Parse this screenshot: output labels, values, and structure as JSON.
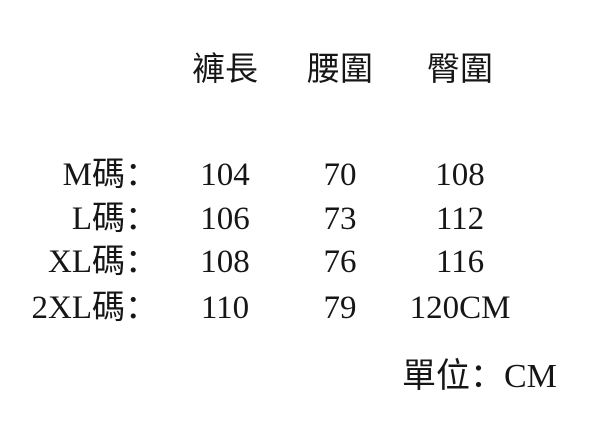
{
  "page": {
    "background": "#ffffff",
    "text_color": "#161616"
  },
  "chart_data": {
    "type": "table",
    "columns": [
      "褲長",
      "腰圍",
      "臀圍"
    ],
    "row_labels": [
      "M碼：",
      "L碼：",
      "XL碼：",
      "2XL碼："
    ],
    "rows": [
      [
        "104",
        "70",
        "108"
      ],
      [
        "106",
        "73",
        "112"
      ],
      [
        "108",
        "76",
        "116"
      ],
      [
        "110",
        "79",
        "120CM"
      ]
    ],
    "unit_note": "單位：CM"
  }
}
